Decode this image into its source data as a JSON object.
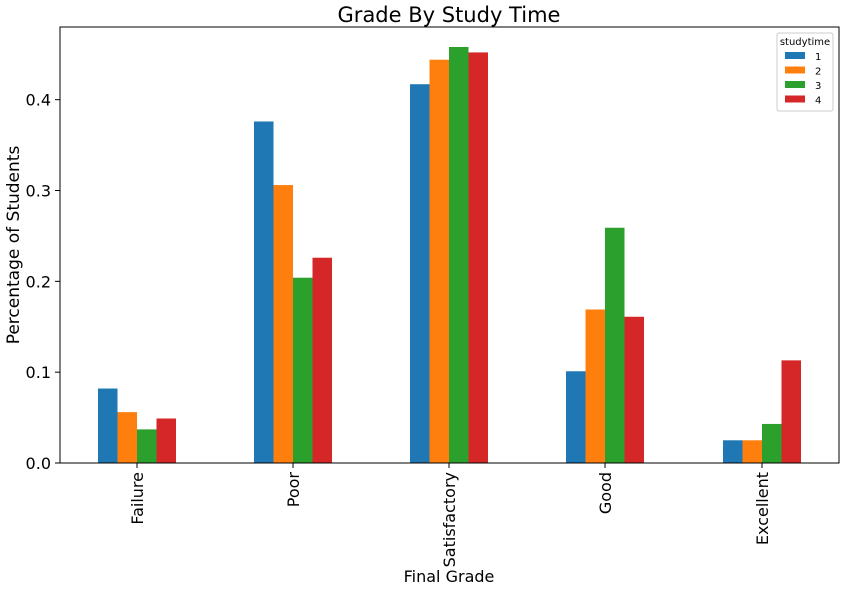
{
  "chart_data": {
    "type": "bar",
    "title": "Grade By Study Time",
    "xlabel": "Final Grade",
    "ylabel": "Percentage of Students",
    "categories": [
      "Failure",
      "Poor",
      "Satisfactory",
      "Good",
      "Excellent"
    ],
    "ylim": [
      0,
      0.48
    ],
    "yticks": [
      "0.0",
      "0.1",
      "0.2",
      "0.3",
      "0.4"
    ],
    "grid": false,
    "legend": {
      "title": "studytime",
      "placement": "top-right"
    },
    "series": [
      {
        "name": "1",
        "color": "#1f77b4",
        "values": [
          0.082,
          0.376,
          0.417,
          0.101,
          0.025
        ]
      },
      {
        "name": "2",
        "color": "#ff7f0e",
        "values": [
          0.056,
          0.306,
          0.444,
          0.169,
          0.025
        ]
      },
      {
        "name": "3",
        "color": "#2ca02c",
        "values": [
          0.037,
          0.204,
          0.458,
          0.259,
          0.043
        ]
      },
      {
        "name": "4",
        "color": "#d62728",
        "values": [
          0.049,
          0.226,
          0.452,
          0.161,
          0.113
        ]
      }
    ]
  }
}
